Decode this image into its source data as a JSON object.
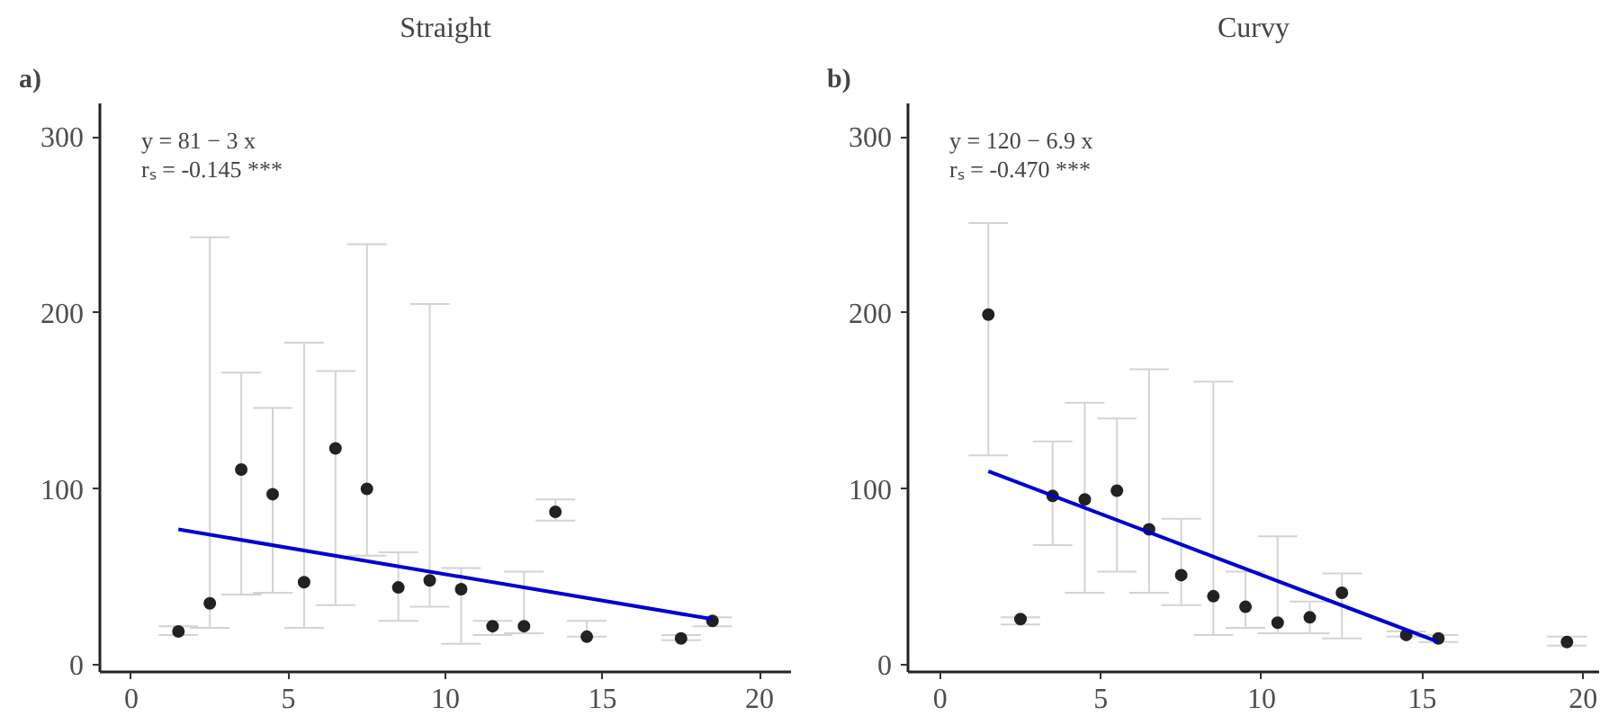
{
  "chart_data": [
    {
      "type": "scatter",
      "title": "Straight",
      "annotations": [
        "a)",
        "y = 81 − 3 x",
        "rₛ = -0.145 ***"
      ],
      "xlim": [
        -1,
        21
      ],
      "ylim": [
        -4,
        319
      ],
      "xticks": [
        0,
        5,
        10,
        15,
        20
      ],
      "yticks": [
        0,
        100,
        200,
        300
      ],
      "grid": false,
      "series": [
        {
          "marker": "circle",
          "color": "#222222",
          "x": [
            1.5,
            2.5,
            3.5,
            4.5,
            5.5,
            6.5,
            7.5,
            8.5,
            9.5,
            10.5,
            11.5,
            12.5,
            13.5,
            14.5,
            17.5,
            18.5
          ],
          "values": [
            19,
            35,
            111,
            97,
            47,
            123,
            100,
            44,
            48,
            43,
            22,
            22,
            87,
            16,
            15,
            25
          ],
          "errors": [
            [
              17,
              22
            ],
            [
              21,
              243
            ],
            [
              40,
              166
            ],
            [
              41,
              146
            ],
            [
              21,
              183
            ],
            [
              34,
              167
            ],
            [
              62,
              239
            ],
            [
              25,
              64
            ],
            [
              33,
              205
            ],
            [
              12,
              55
            ],
            [
              17,
              25
            ],
            [
              18,
              53
            ],
            [
              82,
              94
            ],
            [
              16,
              25
            ],
            [
              14,
              17
            ],
            [
              22,
              27
            ]
          ]
        },
        {
          "type": "line",
          "marker": "none",
          "color": "#0000cc",
          "x": [
            1.5,
            18.5
          ],
          "values": [
            77,
            26
          ]
        }
      ]
    },
    {
      "type": "scatter",
      "title": "Curvy",
      "annotations": [
        "b)",
        "y = 120 − 6.9 x",
        "rₛ = -0.470 ***"
      ],
      "xlim": [
        -1,
        20.5
      ],
      "ylim": [
        -4,
        319
      ],
      "xticks": [
        0,
        5,
        10,
        15,
        20
      ],
      "yticks": [
        0,
        100,
        200,
        300
      ],
      "grid": false,
      "series": [
        {
          "marker": "circle",
          "color": "#222222",
          "x": [
            1.5,
            2.5,
            3.5,
            4.5,
            5.5,
            6.5,
            7.5,
            8.5,
            9.5,
            10.5,
            11.5,
            12.5,
            14.5,
            15.5,
            19.5
          ],
          "values": [
            199,
            26,
            96,
            94,
            99,
            77,
            51,
            39,
            33,
            24,
            27,
            41,
            17,
            15,
            13
          ],
          "errors": [
            [
              119,
              251
            ],
            [
              23,
              27
            ],
            [
              68,
              127
            ],
            [
              41,
              149
            ],
            [
              53,
              140
            ],
            [
              41,
              168
            ],
            [
              34,
              83
            ],
            [
              17,
              161
            ],
            [
              21,
              53
            ],
            [
              18,
              73
            ],
            [
              18,
              36
            ],
            [
              15,
              52
            ],
            [
              16,
              19
            ],
            [
              13,
              17
            ],
            [
              11,
              16
            ]
          ]
        },
        {
          "type": "line",
          "marker": "none",
          "color": "#0000cc",
          "x": [
            1.5,
            15.5
          ],
          "values": [
            110,
            13
          ]
        }
      ]
    }
  ]
}
